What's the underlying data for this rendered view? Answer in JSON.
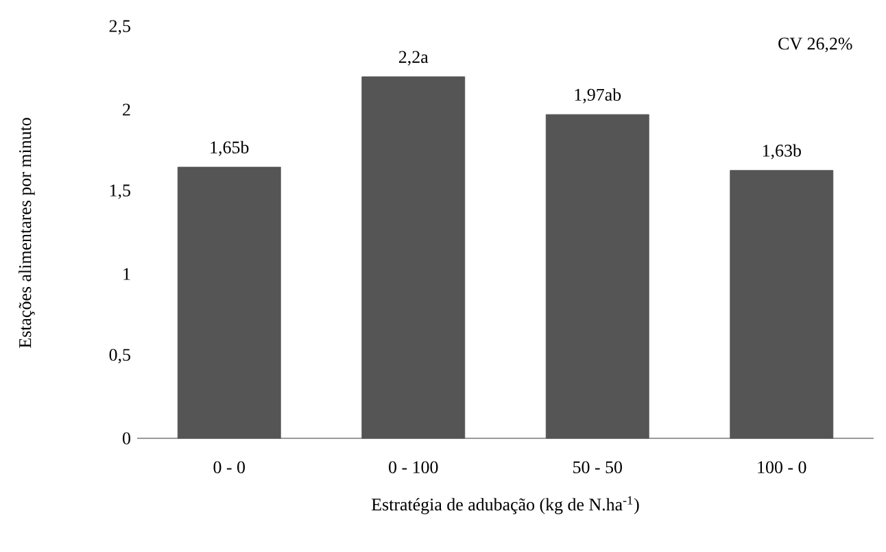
{
  "chart_data": {
    "type": "bar",
    "xlabel": "Estratégia de adubação (kg de N.ha$^{-1}$)",
    "ylabel": "Estações alimentares por minuto",
    "categories": [
      "0 - 0",
      "0 - 100",
      "50 - 50",
      "100 - 0"
    ],
    "values": [
      1.65,
      2.2,
      1.97,
      1.63
    ],
    "color": "#555555",
    "value_labels": [
      "1,65b",
      "2,2a",
      "1,97ab",
      "1,63b"
    ],
    "ylim": [
      0,
      2.5
    ],
    "yticks": [
      0,
      {
        "value": 0.5,
        "label": "0,5"
      },
      1,
      {
        "value": 1.5,
        "label": "1,5"
      },
      2,
      {
        "value": 2.5,
        "label": "2,5"
      }
    ],
    "annotations": [
      "CV 26,2%"
    ],
    "grid": false
  }
}
